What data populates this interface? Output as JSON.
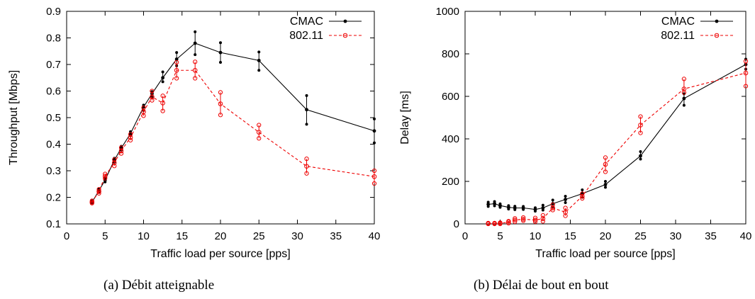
{
  "chart_data": [
    {
      "type": "line",
      "xlabel": "Traffic load per source [pps]",
      "ylabel": "Throughput [Mbps]",
      "xlim": [
        0,
        40
      ],
      "ylim": [
        0.1,
        0.9
      ],
      "xticks": [
        "0",
        "5",
        "10",
        "15",
        "20",
        "25",
        "30",
        "35",
        "40"
      ],
      "yticks": [
        "0.1",
        "0.2",
        "0.3",
        "0.4",
        "0.5",
        "0.6",
        "0.7",
        "0.8",
        "0.9"
      ],
      "legend_position": "top-right",
      "grid": false,
      "caption": "(a) Débit atteignable",
      "series": [
        {
          "name": "CMAC",
          "color": "#000000",
          "style": "solid",
          "marker": "dot",
          "x": [
            3.3,
            4.2,
            5.0,
            6.2,
            7.1,
            8.3,
            10.0,
            11.1,
            12.5,
            14.3,
            16.7,
            20.0,
            25.0,
            31.2,
            40.0
          ],
          "y": [
            0.182,
            0.225,
            0.265,
            0.34,
            0.385,
            0.44,
            0.54,
            0.59,
            0.65,
            0.72,
            0.78,
            0.745,
            0.715,
            0.53,
            0.45
          ],
          "err_low": [
            0.178,
            0.218,
            0.258,
            0.332,
            0.378,
            0.432,
            0.527,
            0.578,
            0.635,
            0.695,
            0.737,
            0.708,
            0.678,
            0.475,
            0.405
          ],
          "err_high": [
            0.187,
            0.232,
            0.272,
            0.347,
            0.392,
            0.447,
            0.547,
            0.598,
            0.672,
            0.745,
            0.823,
            0.782,
            0.747,
            0.583,
            0.495
          ]
        },
        {
          "name": "802.11",
          "color": "#ee0000",
          "style": "dashed",
          "marker": "circle",
          "x": [
            3.3,
            4.2,
            5.0,
            6.2,
            7.1,
            8.3,
            10.0,
            11.1,
            12.5,
            14.3,
            16.7,
            20.0,
            25.0,
            31.2,
            40.0
          ],
          "y": [
            0.182,
            0.222,
            0.28,
            0.33,
            0.375,
            0.425,
            0.522,
            0.578,
            0.555,
            0.678,
            0.678,
            0.552,
            0.445,
            0.317,
            0.278
          ],
          "err_low": [
            0.178,
            0.215,
            0.272,
            0.318,
            0.365,
            0.415,
            0.507,
            0.565,
            0.525,
            0.648,
            0.648,
            0.51,
            0.422,
            0.29,
            0.252
          ],
          "err_high": [
            0.187,
            0.23,
            0.288,
            0.342,
            0.387,
            0.437,
            0.537,
            0.6,
            0.582,
            0.708,
            0.71,
            0.595,
            0.472,
            0.345,
            0.3
          ]
        }
      ]
    },
    {
      "type": "line",
      "xlabel": "Traffic load per source [pps]",
      "ylabel": "Delay [ms]",
      "xlim": [
        0,
        40
      ],
      "ylim": [
        0,
        1000
      ],
      "xticks": [
        "0",
        "5",
        "10",
        "15",
        "20",
        "25",
        "30",
        "35",
        "40"
      ],
      "yticks": [
        "0",
        "200",
        "400",
        "600",
        "800",
        "1000"
      ],
      "legend_position": "top-right",
      "grid": false,
      "caption": "(b) Délai de bout en bout",
      "series": [
        {
          "name": "CMAC",
          "color": "#000000",
          "style": "solid",
          "marker": "dot",
          "x": [
            3.3,
            4.2,
            5.0,
            6.2,
            7.1,
            8.3,
            10.0,
            11.1,
            12.5,
            14.3,
            16.7,
            20.0,
            25.0,
            31.2,
            40.0
          ],
          "y": [
            92,
            95,
            86,
            78,
            75,
            75,
            68,
            75,
            95,
            115,
            142,
            185,
            320,
            590,
            750
          ],
          "err_low": [
            82,
            85,
            78,
            70,
            67,
            68,
            60,
            65,
            80,
            100,
            125,
            172,
            305,
            558,
            728
          ],
          "err_high": [
            102,
            105,
            94,
            86,
            83,
            82,
            76,
            88,
            112,
            130,
            160,
            200,
            340,
            612,
            775
          ]
        },
        {
          "name": "802.11",
          "color": "#ee0000",
          "style": "dashed",
          "marker": "circle",
          "x": [
            3.3,
            4.2,
            5.0,
            6.2,
            7.1,
            8.3,
            10.0,
            11.1,
            12.5,
            14.3,
            16.7,
            20.0,
            25.0,
            31.2,
            40.0
          ],
          "y": [
            2,
            2,
            3,
            8,
            18,
            22,
            18,
            25,
            75,
            55,
            130,
            280,
            465,
            635,
            710
          ],
          "err_low": [
            0,
            0,
            0,
            3,
            10,
            15,
            10,
            12,
            65,
            38,
            120,
            245,
            428,
            618,
            648
          ],
          "err_high": [
            4,
            4,
            6,
            13,
            26,
            30,
            28,
            40,
            90,
            75,
            142,
            312,
            505,
            682,
            765
          ]
        }
      ]
    }
  ]
}
